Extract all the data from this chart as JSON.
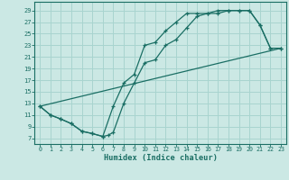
{
  "xlabel": "Humidex (Indice chaleur)",
  "bg_color": "#cbe8e4",
  "line_color": "#1a6e64",
  "grid_color": "#a8d4cf",
  "xlim": [
    -0.5,
    23.5
  ],
  "ylim": [
    6.0,
    30.5
  ],
  "xticks": [
    0,
    1,
    2,
    3,
    4,
    5,
    6,
    7,
    8,
    9,
    10,
    11,
    12,
    13,
    14,
    15,
    16,
    17,
    18,
    19,
    20,
    21,
    22,
    23
  ],
  "yticks": [
    7,
    9,
    11,
    13,
    15,
    17,
    19,
    21,
    23,
    25,
    27,
    29
  ],
  "line1_x": [
    0,
    1,
    2,
    3,
    4,
    5,
    6,
    6.5,
    7,
    8,
    9,
    10,
    11,
    12,
    13,
    14,
    15,
    16,
    17,
    18,
    19,
    20,
    21,
    22,
    23
  ],
  "line1_y": [
    12.5,
    11.0,
    10.3,
    9.5,
    8.2,
    7.8,
    7.3,
    7.5,
    8.0,
    13.0,
    16.5,
    20.0,
    20.5,
    23.0,
    24.0,
    26.0,
    28.0,
    28.5,
    28.5,
    29.0,
    29.0,
    29.0,
    26.5,
    22.5,
    22.5
  ],
  "line2_x": [
    0,
    1,
    2,
    3,
    4,
    5,
    6,
    7,
    8,
    9,
    10,
    11,
    12,
    13,
    14,
    15,
    16,
    17,
    18,
    19,
    20,
    21,
    22,
    23
  ],
  "line2_y": [
    12.5,
    11.0,
    10.3,
    9.5,
    8.2,
    7.8,
    7.3,
    12.5,
    16.5,
    18.0,
    23.0,
    23.5,
    25.5,
    27.0,
    28.5,
    28.5,
    28.5,
    29.0,
    29.0,
    29.0,
    29.0,
    26.5,
    22.5,
    22.5
  ],
  "line3_x": [
    0,
    23
  ],
  "line3_y": [
    12.5,
    22.5
  ]
}
